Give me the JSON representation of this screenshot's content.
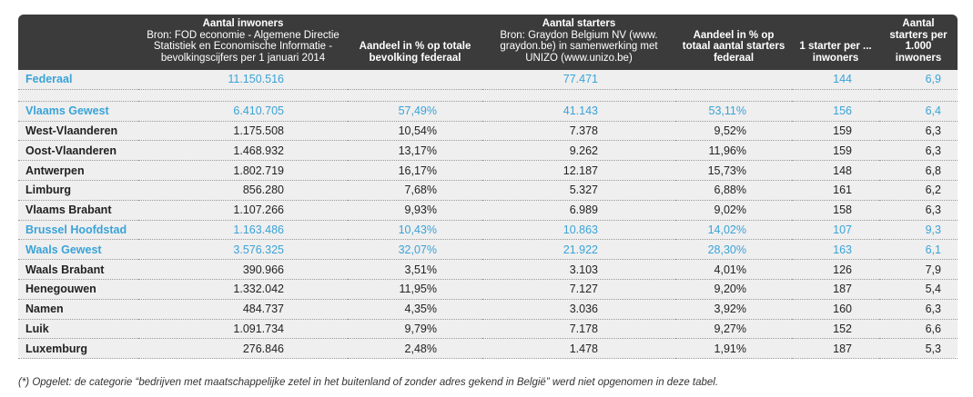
{
  "header": {
    "col_inw_title": "Aantal inwoners",
    "col_inw_sub": "Bron: FOD economie - Algemene Directie Statistiek en Economische Informatie - bevolkingscijfers per 1 januari 2014",
    "col_pct_bev": "Aandeel in % op totale bevolking federaal",
    "col_start_title": "Aantal starters",
    "col_start_sub": "Bron: Graydon Belgium NV (www. graydon.be) in samenwerking met UNIZO (www.unizo.be)",
    "col_pct_start": "Aandeel in % op totaal aantal starters federaal",
    "col_ratio": "1 starter per ... inwoners",
    "col_per1000": "Aantal starters per 1.000 inwoners"
  },
  "rows": [
    {
      "name": "Federaal",
      "inw": "11.150.516",
      "pct_bev": "",
      "starters": "77.471",
      "pct_start": "",
      "ratio": "144",
      "per1000": "6,9"
    },
    {
      "name": "Vlaams Gewest",
      "inw": "6.410.705",
      "pct_bev": "57,49%",
      "starters": "41.143",
      "pct_start": "53,11%",
      "ratio": "156",
      "per1000": "6,4"
    },
    {
      "name": "West-Vlaanderen",
      "inw": "1.175.508",
      "pct_bev": "10,54%",
      "starters": "7.378",
      "pct_start": "9,52%",
      "ratio": "159",
      "per1000": "6,3"
    },
    {
      "name": "Oost-Vlaanderen",
      "inw": "1.468.932",
      "pct_bev": "13,17%",
      "starters": "9.262",
      "pct_start": "11,96%",
      "ratio": "159",
      "per1000": "6,3"
    },
    {
      "name": "Antwerpen",
      "inw": "1.802.719",
      "pct_bev": "16,17%",
      "starters": "12.187",
      "pct_start": "15,73%",
      "ratio": "148",
      "per1000": "6,8"
    },
    {
      "name": "Limburg",
      "inw": "856.280",
      "pct_bev": "7,68%",
      "starters": "5.327",
      "pct_start": "6,88%",
      "ratio": "161",
      "per1000": "6,2"
    },
    {
      "name": "Vlaams Brabant",
      "inw": "1.107.266",
      "pct_bev": "9,93%",
      "starters": "6.989",
      "pct_start": "9,02%",
      "ratio": "158",
      "per1000": "6,3"
    },
    {
      "name": "Brussel Hoofdstad",
      "inw": "1.163.486",
      "pct_bev": "10,43%",
      "starters": "10.863",
      "pct_start": "14,02%",
      "ratio": "107",
      "per1000": "9,3"
    },
    {
      "name": "Waals Gewest",
      "inw": "3.576.325",
      "pct_bev": "32,07%",
      "starters": "21.922",
      "pct_start": "28,30%",
      "ratio": "163",
      "per1000": "6,1"
    },
    {
      "name": "Waals Brabant",
      "inw": "390.966",
      "pct_bev": "3,51%",
      "starters": "3.103",
      "pct_start": "4,01%",
      "ratio": "126",
      "per1000": "7,9"
    },
    {
      "name": "Henegouwen",
      "inw": "1.332.042",
      "pct_bev": "11,95%",
      "starters": "7.127",
      "pct_start": "9,20%",
      "ratio": "187",
      "per1000": "5,4"
    },
    {
      "name": "Namen",
      "inw": "484.737",
      "pct_bev": "4,35%",
      "starters": "3.036",
      "pct_start": "3,92%",
      "ratio": "160",
      "per1000": "6,3"
    },
    {
      "name": "Luik",
      "inw": "1.091.734",
      "pct_bev": "9,79%",
      "starters": "7.178",
      "pct_start": "9,27%",
      "ratio": "152",
      "per1000": "6,6"
    },
    {
      "name": "Luxemburg",
      "inw": "276.846",
      "pct_bev": "2,48%",
      "starters": "1.478",
      "pct_start": "1,91%",
      "ratio": "187",
      "per1000": "5,3"
    }
  ],
  "footnote": "(*) Opgelet: de categorie “bedrijven met maatschappelijke zetel in het buitenland of zonder adres gekend in België” werd niet opgenomen in deze tabel.",
  "colors": {
    "highlight": "#3aa3d8",
    "header_bg": "#3b3b3b",
    "row_bg": "#efefef"
  }
}
